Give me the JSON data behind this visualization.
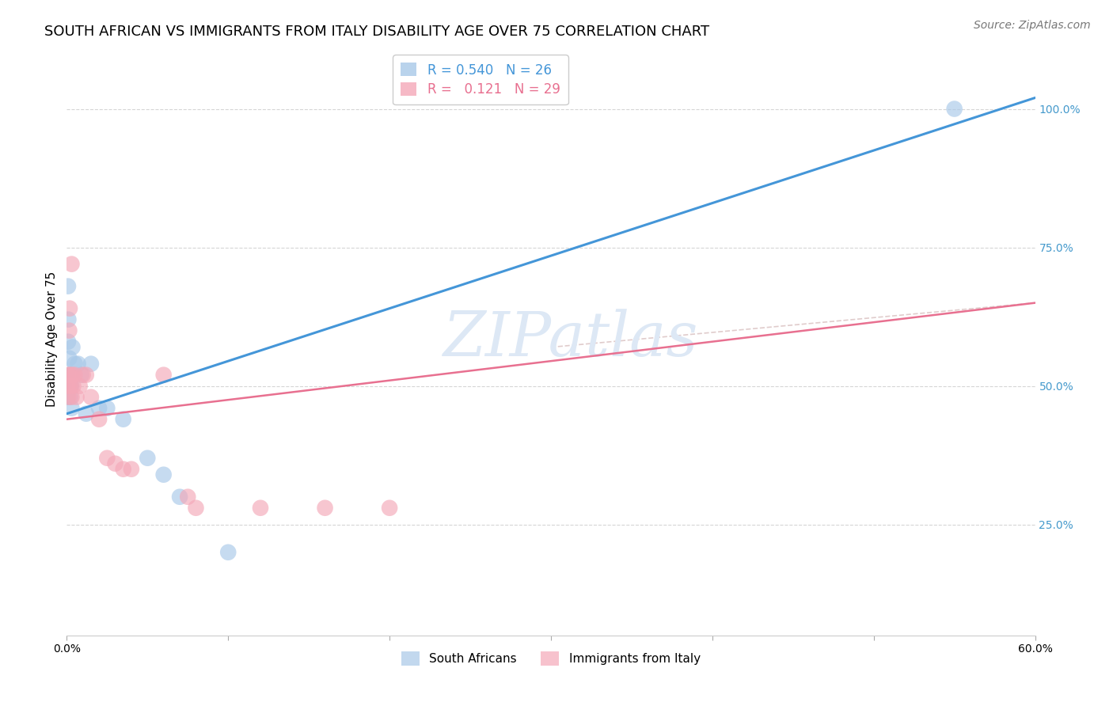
{
  "title": "SOUTH AFRICAN VS IMMIGRANTS FROM ITALY DISABILITY AGE OVER 75 CORRELATION CHART",
  "source": "Source: ZipAtlas.com",
  "ylabel": "Disability Age Over 75",
  "xlim": [
    0.0,
    60.0
  ],
  "ylim": [
    5.0,
    112.0
  ],
  "sa_color": "#a8c8e8",
  "it_color": "#f4a8b8",
  "sa_line_color": "#4496d8",
  "it_line_color": "#e87090",
  "background_color": "#ffffff",
  "grid_color": "#cccccc",
  "watermark": "ZIPatlas",
  "watermark_color": "#dde8f5",
  "title_fontsize": 13,
  "source_fontsize": 10,
  "axis_label_fontsize": 11,
  "tick_fontsize": 10,
  "legend_fontsize": 12,
  "sa_line_y0": 45.0,
  "sa_line_y1": 102.0,
  "it_line_y0": 44.0,
  "it_line_y1": 65.0,
  "south_africans_x": [
    0.05,
    0.08,
    0.1,
    0.12,
    0.15,
    0.18,
    0.2,
    0.22,
    0.25,
    0.28,
    0.3,
    0.35,
    0.5,
    0.7,
    0.9,
    1.2,
    1.5,
    2.0,
    2.5,
    3.5,
    5.0,
    6.0,
    7.0,
    10.0,
    55.0,
    0.08
  ],
  "south_africans_y": [
    48.0,
    58.0,
    62.0,
    50.0,
    55.0,
    52.0,
    50.0,
    48.0,
    52.0,
    50.0,
    46.0,
    57.0,
    54.0,
    54.0,
    52.0,
    45.0,
    54.0,
    46.0,
    46.0,
    44.0,
    37.0,
    34.0,
    30.0,
    20.0,
    100.0,
    68.0
  ],
  "immigrants_x": [
    0.05,
    0.08,
    0.1,
    0.12,
    0.15,
    0.18,
    0.2,
    0.25,
    0.3,
    0.35,
    0.4,
    0.5,
    0.6,
    0.8,
    1.0,
    1.2,
    1.5,
    2.0,
    2.5,
    3.0,
    3.5,
    4.0,
    6.0,
    7.5,
    8.0,
    12.0,
    16.0,
    20.0,
    0.3
  ],
  "immigrants_y": [
    50.0,
    52.0,
    48.0,
    50.0,
    60.0,
    64.0,
    52.0,
    50.0,
    48.0,
    52.0,
    50.0,
    52.0,
    48.0,
    50.0,
    52.0,
    52.0,
    48.0,
    44.0,
    37.0,
    36.0,
    35.0,
    35.0,
    52.0,
    30.0,
    28.0,
    28.0,
    28.0,
    28.0,
    72.0
  ]
}
